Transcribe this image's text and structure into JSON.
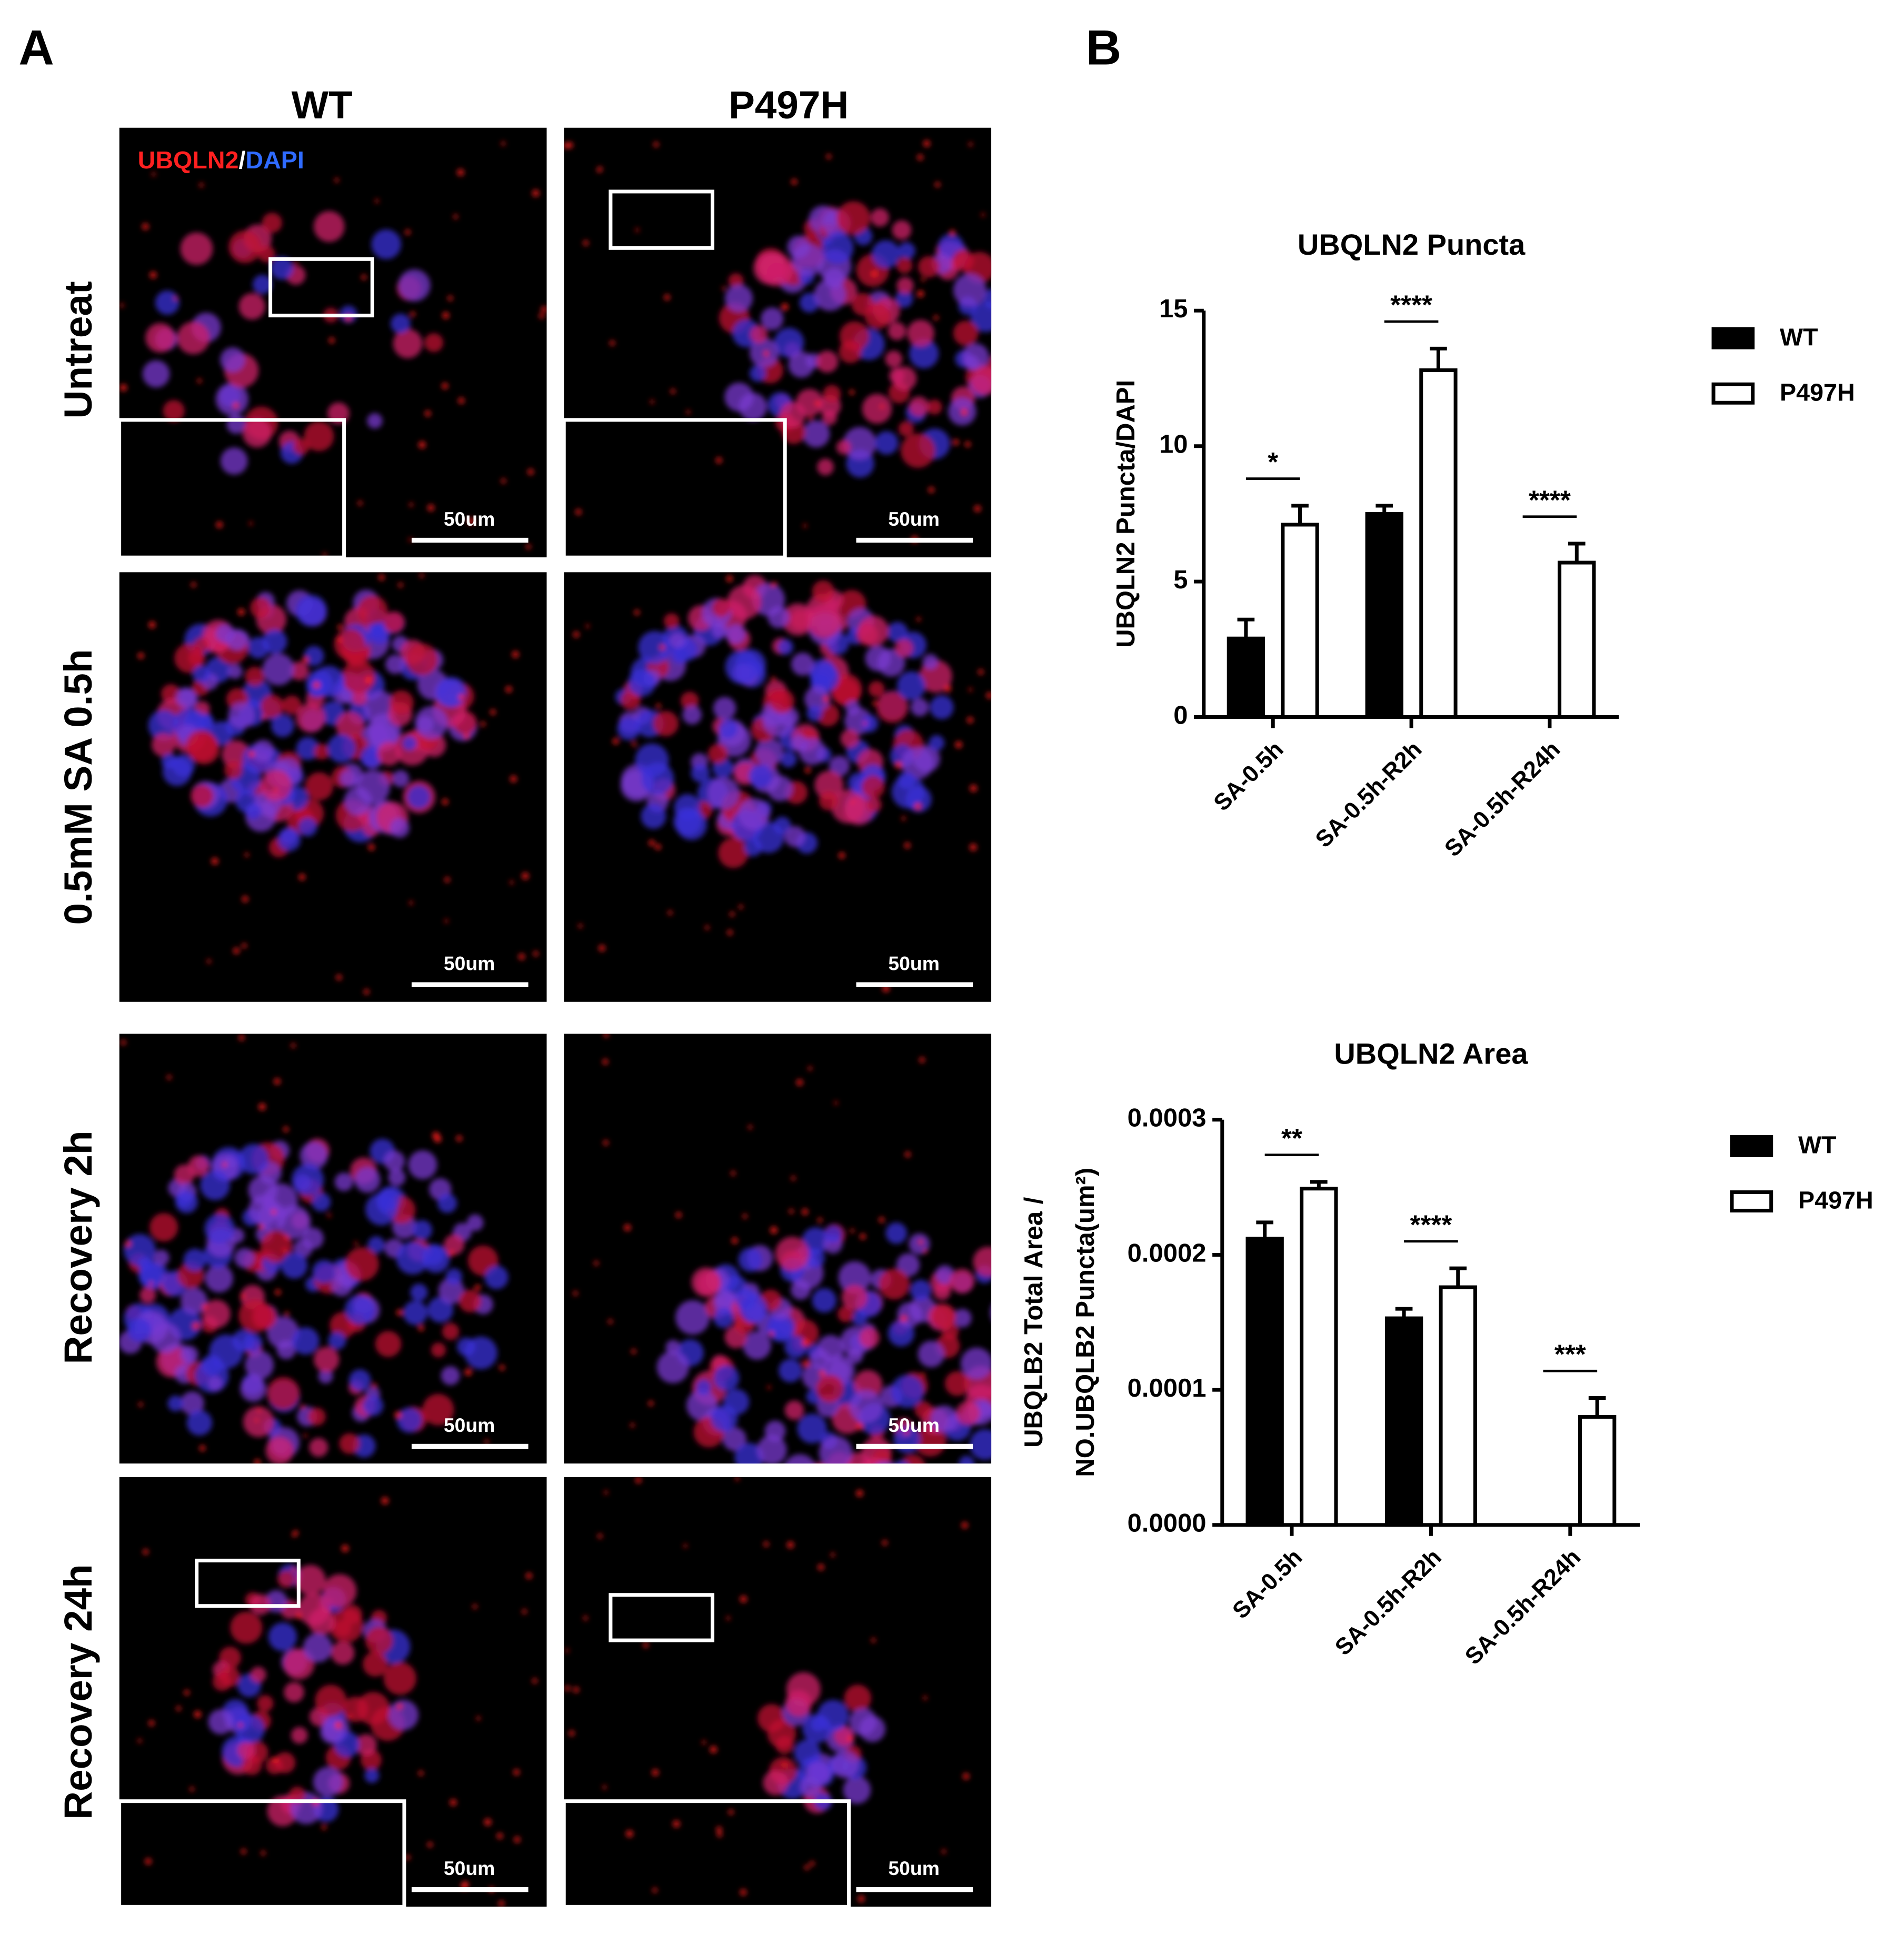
{
  "panel_labels": [
    "A",
    "B"
  ],
  "panel_a": {
    "columns": [
      "WT",
      "P497H"
    ],
    "rows": [
      "Untreat",
      "0.5mM SA 0.5h",
      "Recovery 2h",
      "Recovery 24h"
    ],
    "stain": [
      "UBQLN2",
      "/",
      "DAPI"
    ],
    "scale_bar": "50um"
  },
  "chart_data": [
    {
      "type": "bar",
      "title": "UBQLN2 Puncta",
      "y_label": [
        "UBQLN2 Puncta/DAPI"
      ],
      "categories": [
        "SA-0.5h",
        "SA-0.5h-R2h",
        "SA-0.5h-R24h"
      ],
      "series": [
        {
          "name": "WT",
          "color": "#000000",
          "values": [
            2.9,
            7.5,
            0
          ],
          "errors": [
            0.7,
            0.3,
            null
          ]
        },
        {
          "name": "P497H",
          "color": "#ffffff",
          "values": [
            7.1,
            12.8,
            5.7
          ],
          "errors": [
            0.7,
            0.8,
            0.7
          ]
        }
      ],
      "edge_color": "#000000",
      "significance": [
        "*",
        "****",
        "****"
      ],
      "ylim": [
        0,
        15
      ],
      "yticks": [
        0,
        5,
        10,
        15
      ],
      "legend": "right"
    },
    {
      "type": "bar",
      "title": "UBQLN2 Area",
      "y_label": [
        "UBQLB2 Total Area /",
        "NO.UBQLB2 Puncta(um²)"
      ],
      "categories": [
        "SA-0.5h",
        "SA-0.5h-R2h",
        "SA-0.5h-R24h"
      ],
      "series": [
        {
          "name": "WT",
          "color": "#000000",
          "values": [
            0.000212,
            0.000153,
            0
          ],
          "errors": [
            1.2e-05,
            7e-06,
            null
          ]
        },
        {
          "name": "P497H",
          "color": "#ffffff",
          "values": [
            0.000249,
            0.000176,
            8e-05
          ],
          "errors": [
            5e-06,
            1.4e-05,
            1.4e-05
          ]
        }
      ],
      "edge_color": "#000000",
      "significance": [
        "**",
        "****",
        "***"
      ],
      "ylim": [
        0,
        0.0003
      ],
      "yticks": [
        {
          "value": 0,
          "label": "0.0000"
        },
        {
          "value": 0.0001,
          "label": "0.0001"
        },
        {
          "value": 0.0002,
          "label": "0.0002"
        },
        {
          "value": 0.0003,
          "label": "0.0003"
        }
      ],
      "legend": "right"
    }
  ]
}
